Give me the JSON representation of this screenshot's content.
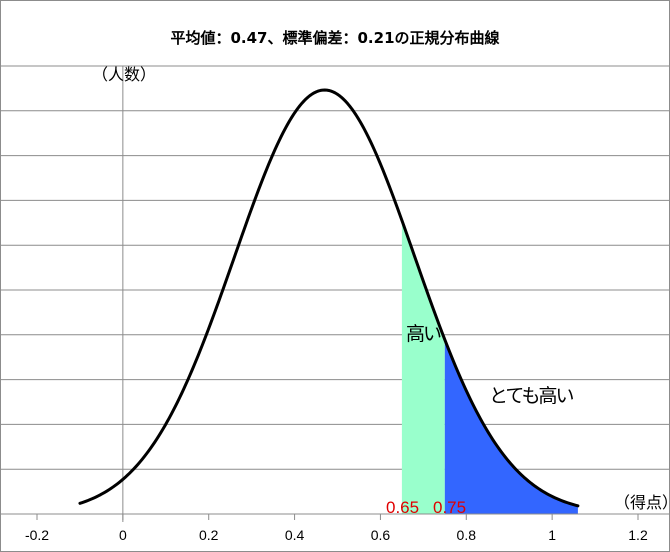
{
  "chart_data": {
    "type": "area",
    "title": "平均値：0.47、標準偏差：0.21の正規分布曲線",
    "xlabel": "（得点）",
    "ylabel": "（人数）",
    "distribution": {
      "mean": 0.47,
      "sd": 0.21
    },
    "x_range_of_curve": [
      -0.1,
      1.06
    ],
    "xlim": [
      -0.2,
      1.2
    ],
    "x_ticks": [
      -0.2,
      0,
      0.2,
      0.4,
      0.6,
      0.8,
      1,
      1.2
    ],
    "x_tick_labels": [
      "-0.2",
      "0",
      "0.2",
      "0.4",
      "0.6",
      "0.8",
      "1",
      "1.2"
    ],
    "horizontal_grid": true,
    "shaded_regions": [
      {
        "label": "高い",
        "from": 0.65,
        "to": 0.75,
        "color": "#99ffcc"
      },
      {
        "label": "とても高い",
        "from": 0.75,
        "to": 1.06,
        "color": "#3366ff"
      }
    ],
    "threshold_labels": [
      "0.65",
      "0.75"
    ],
    "colors": {
      "curve": "#000000",
      "threshold_text": "#e00000",
      "grid": "#8c8c8c"
    }
  }
}
